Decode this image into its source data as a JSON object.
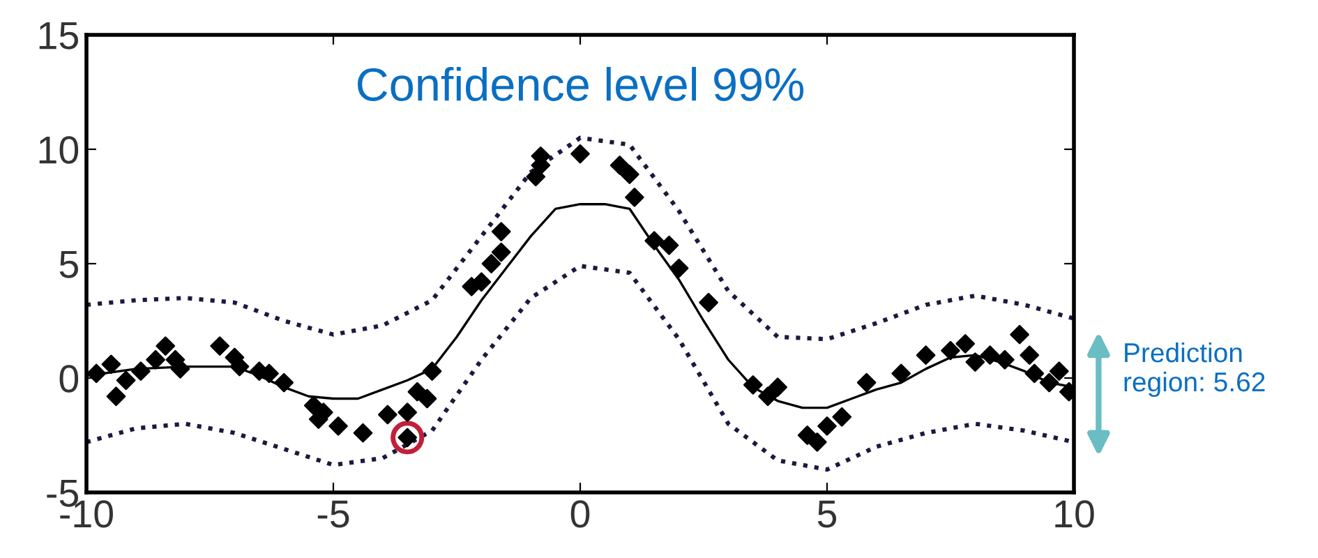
{
  "chart_data": {
    "type": "line",
    "xlim": [
      -10,
      10
    ],
    "ylim": [
      -5,
      15
    ],
    "xticks": [
      -10,
      -5,
      0,
      5,
      10
    ],
    "yticks": [
      -5,
      0,
      5,
      10,
      15
    ],
    "grid": false,
    "legend": false,
    "annotations": [
      "Confidence level 99%",
      "Prediction region: 5.62"
    ],
    "series": [
      {
        "color": "#000000",
        "line_style": "solid",
        "marker": "none",
        "x": [
          -10,
          -9,
          -8,
          -7,
          -6.5,
          -6,
          -5.5,
          -5,
          -4.5,
          -4,
          -3.5,
          -3,
          -2.5,
          -2,
          -1.5,
          -1,
          -0.5,
          0,
          0.5,
          1,
          1.5,
          2,
          2.5,
          3,
          3.5,
          4,
          4.5,
          5,
          5.5,
          6,
          6.5,
          7,
          7.5,
          8,
          8.5,
          9,
          9.5,
          10
        ],
        "values": [
          0.1,
          0.4,
          0.5,
          0.5,
          0.1,
          -0.4,
          -0.8,
          -0.9,
          -0.9,
          -0.5,
          -0.1,
          0.4,
          1.8,
          3.4,
          4.8,
          6.2,
          7.4,
          7.6,
          7.6,
          7.4,
          5.8,
          4.3,
          2.5,
          0.8,
          -0.4,
          -1.0,
          -1.3,
          -1.3,
          -0.9,
          -0.5,
          -0.2,
          0.4,
          0.9,
          1.0,
          0.7,
          0.3,
          -0.2,
          -0.4
        ]
      },
      {
        "type": "line",
        "color": "#1a1a40",
        "line_style": "dotted",
        "marker": "none",
        "x": [
          -10,
          -9,
          -8,
          -7,
          -6,
          -5,
          -4,
          -3,
          -2,
          -1,
          0,
          1,
          2,
          3,
          4,
          5,
          6,
          7,
          8,
          9,
          10
        ],
        "values": [
          3.2,
          3.4,
          3.5,
          3.3,
          2.5,
          1.9,
          2.3,
          3.4,
          6.2,
          9.0,
          10.5,
          10.2,
          7.3,
          3.8,
          1.8,
          1.7,
          2.4,
          3.2,
          3.6,
          3.2,
          2.6
        ]
      },
      {
        "type": "line",
        "color": "#1a1a40",
        "line_style": "dotted",
        "marker": "none",
        "x": [
          -10,
          -9,
          -8,
          -7,
          -6,
          -5,
          -4,
          -3,
          -2,
          -1,
          0,
          1,
          2,
          3,
          4,
          5,
          6,
          7,
          8,
          9,
          10
        ],
        "values": [
          -2.8,
          -2.2,
          -2.0,
          -2.4,
          -3.1,
          -3.8,
          -3.5,
          -2.3,
          0.8,
          3.5,
          4.9,
          4.6,
          1.7,
          -2.0,
          -3.6,
          -4.0,
          -3.0,
          -2.4,
          -2.0,
          -2.3,
          -2.8
        ]
      },
      {
        "type": "scatter",
        "color": "#000000",
        "marker": "diamond",
        "x": [
          -9.8,
          -9.5,
          -9.4,
          -9.2,
          -8.9,
          -8.6,
          -8.4,
          -8.2,
          -8.1,
          -7.3,
          -7.0,
          -6.9,
          -6.5,
          -6.3,
          -6.0,
          -5.4,
          -5.3,
          -5.2,
          -4.9,
          -4.4,
          -3.9,
          -3.5,
          -3.5,
          -3.3,
          -3.1,
          -3.0,
          -2.2,
          -2.0,
          -1.8,
          -1.6,
          -1.6,
          -0.9,
          -0.8,
          -0.8,
          0,
          0.8,
          1.0,
          1.1,
          1.5,
          1.8,
          2.0,
          2.6,
          3.5,
          3.8,
          4.0,
          4.6,
          4.8,
          5.0,
          5.3,
          5.8,
          6.5,
          7.0,
          7.5,
          7.8,
          8.0,
          8.3,
          8.6,
          8.9,
          9.1,
          9.2,
          9.5,
          9.7,
          9.9
        ],
        "values": [
          0.2,
          0.6,
          -0.8,
          -0.1,
          0.3,
          0.8,
          1.4,
          0.8,
          0.4,
          1.4,
          0.9,
          0.5,
          0.3,
          0.2,
          -0.2,
          -1.2,
          -1.8,
          -1.5,
          -2.1,
          -2.4,
          -1.6,
          -1.5,
          -2.6,
          -0.6,
          -0.9,
          0.3,
          4.0,
          4.2,
          5.0,
          5.5,
          6.4,
          8.8,
          9.3,
          9.7,
          9.8,
          9.3,
          8.9,
          7.9,
          6.0,
          5.8,
          4.8,
          3.3,
          -0.3,
          -0.8,
          -0.4,
          -2.5,
          -2.8,
          -2.1,
          -1.7,
          -0.2,
          0.2,
          1.0,
          1.2,
          1.5,
          0.7,
          1.0,
          0.8,
          1.9,
          1.0,
          0.2,
          -0.2,
          0.3,
          -0.6
        ]
      },
      {
        "type": "scatter",
        "color": "#c0203a",
        "marker": "open_circle",
        "x": [
          -3.5
        ],
        "values": [
          -2.6
        ]
      }
    ]
  }
}
